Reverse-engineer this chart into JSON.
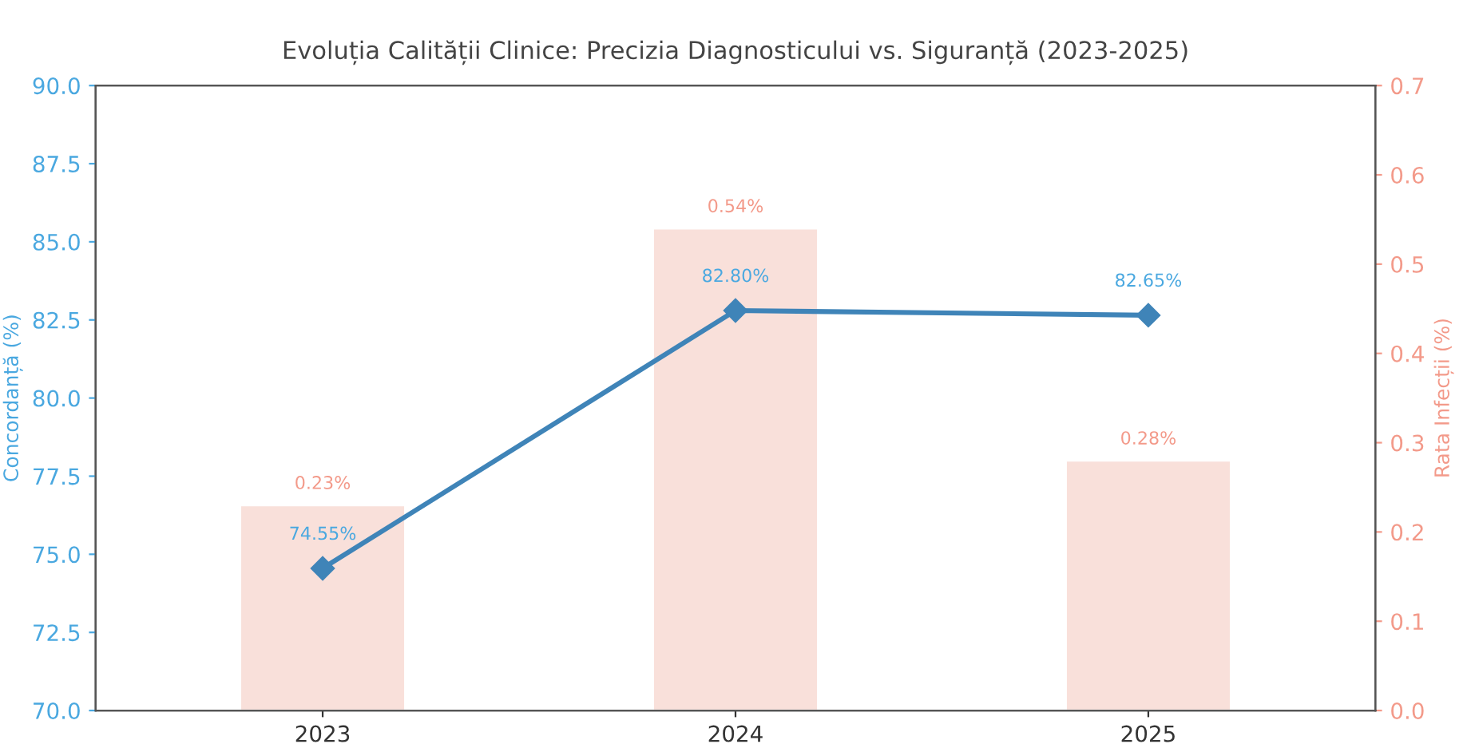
{
  "chart_data": {
    "type": "line",
    "title": "Evoluția Calității Clinice: Precizia Diagnosticului vs. Siguranță (2023-2025)",
    "categories": [
      "2023",
      "2024",
      "2025"
    ],
    "ylabel": "Concordanță (%)",
    "y2label": "Rata Infecții (%)",
    "ylim": [
      70,
      90
    ],
    "yticks": [
      {
        "value": 70,
        "label": "70.0"
      },
      {
        "value": 72.5,
        "label": "72.5"
      },
      {
        "value": 75,
        "label": "75.0"
      },
      {
        "value": 77.5,
        "label": "77.5"
      },
      {
        "value": 80,
        "label": "80.0"
      },
      {
        "value": 82.5,
        "label": "82.5"
      },
      {
        "value": 85,
        "label": "85.0"
      },
      {
        "value": 87.5,
        "label": "87.5"
      },
      {
        "value": 90,
        "label": "90.0"
      }
    ],
    "y2lim": [
      0,
      0.7
    ],
    "y2ticks": [
      {
        "value": 0,
        "label": "0.0"
      },
      0.1,
      0.2,
      0.3,
      0.4,
      0.5,
      0.6,
      0.7
    ],
    "series": [
      {
        "type": "bar",
        "axis": "y2",
        "color": "#f9ddd6",
        "values": [
          0.23,
          0.54,
          0.28
        ],
        "value_labels": [
          "0.23%",
          "0.54%",
          "0.28%"
        ]
      },
      {
        "color": "#3f84b8",
        "marker": "diamond",
        "line_style": "solid",
        "values": [
          74.55,
          82.8,
          82.65
        ],
        "value_labels": [
          "74.55%",
          "82.80%",
          "82.65%"
        ]
      }
    ],
    "grid": false,
    "legend": false
  }
}
